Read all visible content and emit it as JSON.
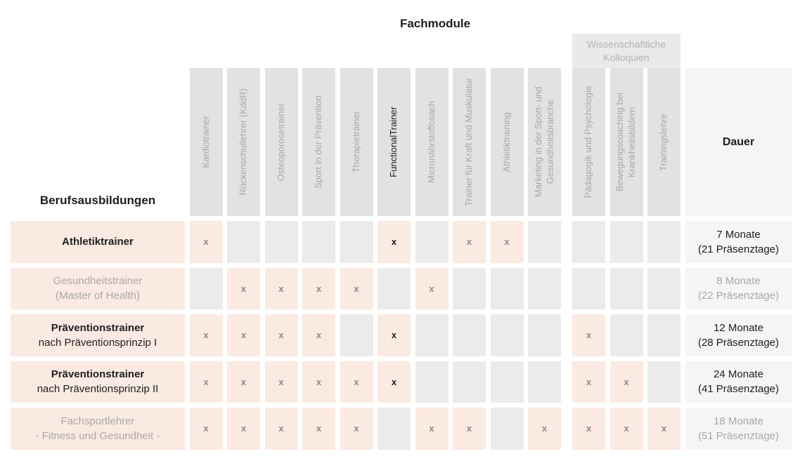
{
  "colors": {
    "accent_peach": "#fbeae2",
    "body_cell_gray": "#ebebeb",
    "column_header_gray": "#e2e2e2",
    "group_band_gray": "#eaeaea",
    "duration_column_bg": "#f5f5f5",
    "muted_text": "#a8a8a8",
    "band_text": "#b3b3b3",
    "mark_gray": "#8a8a8a",
    "dark_text": "#1d1d1d"
  },
  "chart_data": {
    "type": "table",
    "title": "Fachmodule",
    "row_header_title": "Berufsausbildungen",
    "group_header": "Wissenschaftliche Kolloquien",
    "duration_header": "Dauer",
    "mark_symbol": "x",
    "columns": [
      {
        "label": "Kardiotrainer",
        "emphasized": false,
        "in_group": false
      },
      {
        "label": "Rückenschullehrer (KddR)",
        "emphasized": false,
        "in_group": false
      },
      {
        "label": "Osteoporosetrainer",
        "emphasized": false,
        "in_group": false
      },
      {
        "label": "Sport in der Prävention",
        "emphasized": false,
        "in_group": false
      },
      {
        "label": "Therapietrainer",
        "emphasized": false,
        "in_group": false
      },
      {
        "label": "FunctionalTrainer",
        "emphasized": true,
        "in_group": false
      },
      {
        "label": "Micronährstoffcoach",
        "emphasized": false,
        "in_group": false
      },
      {
        "label": "Trainer für Kraft und Muskulatur",
        "emphasized": false,
        "in_group": false
      },
      {
        "label": "Athletiktraining",
        "emphasized": false,
        "in_group": false
      },
      {
        "label": "Marketing in der Sport- und Gesundheitsbranche",
        "emphasized": false,
        "in_group": false
      },
      {
        "label": "Pädagogik und Psychologie",
        "emphasized": false,
        "in_group": true
      },
      {
        "label": "Bewegungscoaching bei Krankheitsbildern",
        "emphasized": false,
        "in_group": true
      },
      {
        "label": "Trainingslehre",
        "emphasized": false,
        "in_group": true
      }
    ],
    "rows": [
      {
        "label_lines": [
          "Athletiktrainer"
        ],
        "label_bold_first_line": true,
        "dimmed": false,
        "marks": [
          "x",
          "",
          "",
          "",
          "",
          "X",
          "",
          "x",
          "x",
          "",
          "",
          "",
          ""
        ],
        "duration_lines": [
          "7 Monate",
          "(21 Präsenztage)"
        ]
      },
      {
        "label_lines": [
          "Gesundheitstrainer",
          "(Master of Health)"
        ],
        "label_bold_first_line": false,
        "dimmed": true,
        "marks": [
          "",
          "x",
          "x",
          "x",
          "x",
          "",
          "x",
          "",
          "",
          "",
          "",
          "",
          ""
        ],
        "duration_lines": [
          "8 Monate",
          "(22 Präsenztage)"
        ]
      },
      {
        "label_lines": [
          "Präventionstrainer",
          "nach Präventionsprinzip I"
        ],
        "label_bold_first_line": true,
        "dimmed": false,
        "marks": [
          "x",
          "x",
          "x",
          "x",
          "",
          "X",
          "",
          "",
          "",
          "",
          "x",
          "",
          ""
        ],
        "duration_lines": [
          "12 Monate",
          "(28 Präsenztage)"
        ]
      },
      {
        "label_lines": [
          "Präventionstrainer",
          "nach Präventionsprinzip II"
        ],
        "label_bold_first_line": true,
        "dimmed": false,
        "marks": [
          "x",
          "x",
          "x",
          "x",
          "x",
          "X",
          "",
          "",
          "",
          "",
          "x",
          "x",
          ""
        ],
        "duration_lines": [
          "24 Monate",
          "(41 Präsenztage)"
        ]
      },
      {
        "label_lines": [
          "Fachsportlehrer",
          "- Fitness und Gesundheit -"
        ],
        "label_bold_first_line": false,
        "dimmed": true,
        "marks": [
          "x",
          "x",
          "x",
          "x",
          "x",
          "",
          "x",
          "x",
          "",
          "x",
          "x",
          "x",
          "x"
        ],
        "duration_lines": [
          "18 Monate",
          "(51 Präsenztage)"
        ]
      }
    ]
  }
}
